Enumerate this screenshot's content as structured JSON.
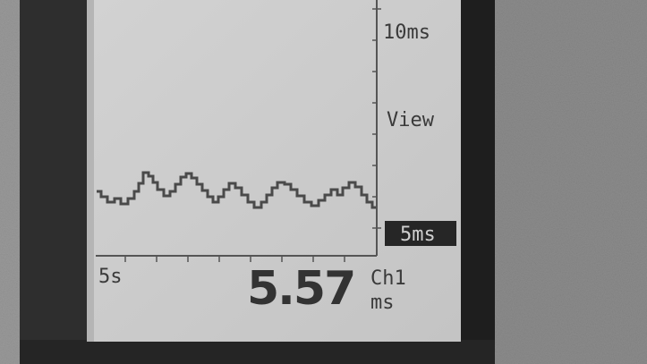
{
  "screen": {
    "scale_top": "10ms",
    "mode": "View",
    "scale_selected": "5ms",
    "time_span": "5s",
    "reading": "5.57",
    "channel": "Ch1",
    "unit": "ms"
  }
}
